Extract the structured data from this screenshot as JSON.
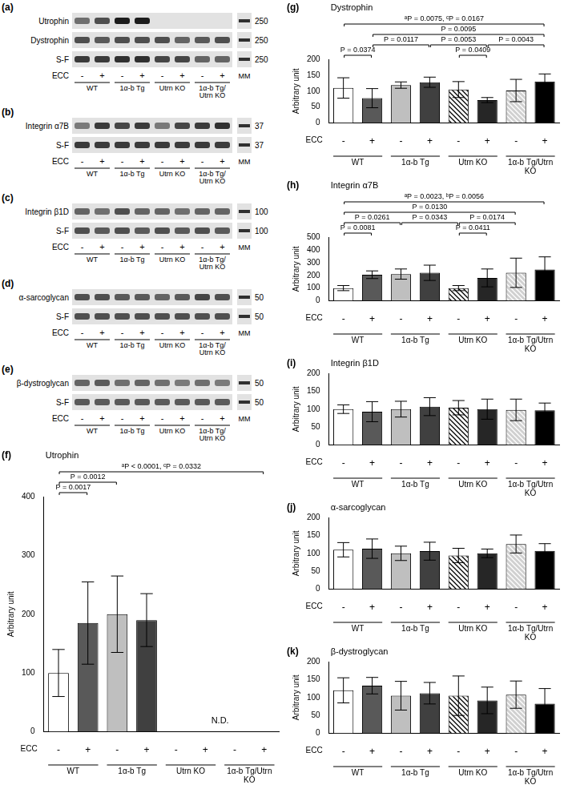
{
  "blots": [
    {
      "letter": "(a)",
      "lane_label": "ECC",
      "lanes": [
        "-",
        "+",
        "-",
        "+",
        "-",
        "+",
        "-",
        "+"
      ],
      "groups": [
        "WT",
        "1α-b Tg",
        "Utrn KO",
        "1α-b Tg/Utrn KO"
      ],
      "marker_label": "MM",
      "rows": [
        {
          "label": "Utrophin",
          "marker": 250,
          "bands": [
            0.55,
            0.7,
            0.95,
            0.95,
            0,
            0,
            0,
            0
          ]
        },
        {
          "label": "Dystrophin",
          "marker": 250,
          "bands": [
            0.7,
            0.65,
            0.7,
            0.7,
            0.7,
            0.6,
            0.65,
            0.7
          ]
        },
        {
          "label": "S-F",
          "marker": 250,
          "bands": [
            0.8,
            0.8,
            0.85,
            0.85,
            0.75,
            0.75,
            0.6,
            0.6
          ]
        }
      ]
    },
    {
      "letter": "(b)",
      "lane_label": "ECC",
      "lanes": [
        "-",
        "+",
        "-",
        "+",
        "-",
        "+",
        "-",
        "+"
      ],
      "groups": [
        "WT",
        "1α-b Tg",
        "Utrn KO",
        "1α-b Tg/Utrn KO"
      ],
      "marker_label": "MM",
      "rows": [
        {
          "label": "Integrin α7B",
          "marker": 37,
          "bands": [
            0.5,
            0.8,
            0.75,
            0.8,
            0.5,
            0.75,
            0.8,
            0.85
          ]
        },
        {
          "label": "S-F",
          "marker": 37,
          "bands": [
            0.8,
            0.8,
            0.8,
            0.8,
            0.8,
            0.8,
            0.8,
            0.8
          ]
        }
      ]
    },
    {
      "letter": "(c)",
      "lane_label": "ECC",
      "lanes": [
        "-",
        "+",
        "-",
        "+",
        "-",
        "+",
        "-",
        "+"
      ],
      "groups": [
        "WT",
        "1α-b Tg",
        "Utrn KO",
        "1α-b Tg/Utrn KO"
      ],
      "marker_label": "MM",
      "rows": [
        {
          "label": "Integrin β1D",
          "marker": 100,
          "bands": [
            0.6,
            0.55,
            0.7,
            0.6,
            0.6,
            0.55,
            0.6,
            0.6
          ]
        },
        {
          "label": "S-F",
          "marker": 100,
          "bands": [
            0.7,
            0.65,
            0.7,
            0.65,
            0.7,
            0.65,
            0.7,
            0.65
          ]
        }
      ]
    },
    {
      "letter": "(d)",
      "lane_label": "ECC",
      "lanes": [
        "-",
        "+",
        "-",
        "+",
        "-",
        "+",
        "-",
        "+"
      ],
      "groups": [
        "WT",
        "1α-b Tg",
        "Utrn KO",
        "1α-b Tg/Utrn KO"
      ],
      "marker_label": "MM",
      "rows": [
        {
          "label": "α-sarcoglycan",
          "marker": 50,
          "bands": [
            0.7,
            0.7,
            0.65,
            0.65,
            0.6,
            0.65,
            0.75,
            0.7
          ]
        },
        {
          "label": "S-F",
          "marker": 50,
          "bands": [
            0.7,
            0.7,
            0.7,
            0.7,
            0.7,
            0.7,
            0.7,
            0.7
          ]
        }
      ]
    },
    {
      "letter": "(e)",
      "lane_label": "ECC",
      "lanes": [
        "-",
        "+",
        "-",
        "+",
        "-",
        "+",
        "-",
        "+"
      ],
      "groups": [
        "WT",
        "1α-b Tg",
        "Utrn KO",
        "1α-b Tg/Utrn KO"
      ],
      "marker_label": "MM",
      "rows": [
        {
          "label": "β-dystroglycan",
          "marker": 50,
          "bands": [
            0.6,
            0.65,
            0.55,
            0.6,
            0.55,
            0.5,
            0.55,
            0.5
          ]
        },
        {
          "label": "S-F",
          "marker": 50,
          "bands": [
            0.65,
            0.65,
            0.65,
            0.65,
            0.65,
            0.65,
            0.65,
            0.65
          ]
        }
      ]
    }
  ],
  "chart_data": [
    {
      "type": "bar",
      "panel": "(f)",
      "title": "Utrophin",
      "y_label": "Arbitrary unit",
      "category_label": "ECC",
      "categories": [
        "-",
        "+",
        "-",
        "+",
        "-",
        "+",
        "-",
        "+"
      ],
      "groups": [
        "WT",
        "1α-b Tg",
        "Utrn KO",
        "1α-b Tg/Utrn KO"
      ],
      "values": [
        100,
        185,
        200,
        190,
        0,
        0,
        0,
        0
      ],
      "errors": [
        40,
        70,
        65,
        45,
        0,
        0,
        0,
        0
      ],
      "colors": [
        "#ffffff",
        "#595959",
        "#bfbfbf",
        "#404040",
        "#ffffff",
        "#262626",
        "#d0d0d0",
        "#000000"
      ],
      "ylim": [
        0,
        400
      ],
      "yticks": [
        0,
        100,
        200,
        300,
        400
      ],
      "grid": false,
      "comparisons": [
        {
          "bars": [
            0,
            1
          ],
          "label": "P = 0.0017"
        },
        {
          "bars": [
            0,
            2
          ],
          "label": "P = 0.0012"
        },
        {
          "bars": [
            0,
            7
          ],
          "label": "ᵃP < 0.0001, ᶜP = 0.0332"
        }
      ],
      "annotations": [
        {
          "bars": [
            4,
            7
          ],
          "text": "N.D."
        }
      ]
    },
    {
      "type": "bar",
      "panel": "(g)",
      "title": "Dystrophin",
      "y_label": "Arbitrary unit",
      "category_label": "ECC",
      "categories": [
        "-",
        "+",
        "-",
        "+",
        "-",
        "+",
        "-",
        "+"
      ],
      "groups": [
        "WT",
        "1α-b Tg",
        "Utrn KO",
        "1α-b Tg/Utrn KO"
      ],
      "values": [
        110,
        78,
        119,
        128,
        105,
        72,
        102,
        130
      ],
      "errors": [
        32,
        30,
        10,
        16,
        25,
        8,
        35,
        24
      ],
      "colors": [
        "#ffffff",
        "#595959",
        "#bfbfbf",
        "#404040",
        "#ffffff",
        "#262626",
        "#d0d0d0",
        "#000000"
      ],
      "ylim": [
        0,
        200
      ],
      "yticks": [
        0,
        50,
        100,
        150,
        200
      ],
      "grid": false,
      "comparisons": [
        {
          "bars": [
            0,
            1
          ],
          "label": "P = 0.0374"
        },
        {
          "bars": [
            4,
            5
          ],
          "label": "P = 0.0409"
        },
        {
          "bars": [
            1,
            3
          ],
          "label": "P = 0.0117"
        },
        {
          "bars": [
            3,
            5
          ],
          "label": "P = 0.0053"
        },
        {
          "bars": [
            5,
            7
          ],
          "label": "P = 0.0043"
        },
        {
          "bars": [
            1,
            7
          ],
          "label": "P = 0.0095"
        },
        {
          "bars": [
            0,
            7
          ],
          "label": "ᵃP = 0.0075, ᶜP = 0.0167"
        }
      ],
      "annotations": []
    },
    {
      "type": "bar",
      "panel": "(h)",
      "title": "Integrin α7B",
      "y_label": "Arbitrary unit",
      "category_label": "ECC",
      "categories": [
        "-",
        "+",
        "-",
        "+",
        "-",
        "+",
        "-",
        "+"
      ],
      "groups": [
        "WT",
        "1α-b Tg",
        "Utrn KO",
        "1α-b Tg/Utrn KO"
      ],
      "values": [
        100,
        205,
        210,
        220,
        100,
        180,
        220,
        245
      ],
      "errors": [
        20,
        30,
        40,
        60,
        20,
        70,
        115,
        100
      ],
      "colors": [
        "#ffffff",
        "#595959",
        "#bfbfbf",
        "#404040",
        "#ffffff",
        "#262626",
        "#d0d0d0",
        "#000000"
      ],
      "ylim": [
        0,
        500
      ],
      "yticks": [
        0,
        100,
        200,
        300,
        400,
        500
      ],
      "grid": false,
      "comparisons": [
        {
          "bars": [
            0,
            1
          ],
          "label": "P = 0.0081"
        },
        {
          "bars": [
            4,
            5
          ],
          "label": "P = 0.0411"
        },
        {
          "bars": [
            0,
            2
          ],
          "label": "P = 0.0261"
        },
        {
          "bars": [
            2,
            4
          ],
          "label": "P = 0.0343"
        },
        {
          "bars": [
            4,
            6
          ],
          "label": "P = 0.0174"
        },
        {
          "bars": [
            0,
            6
          ],
          "label": "P = 0.0130"
        },
        {
          "bars": [
            0,
            7
          ],
          "label": "ᵃP = 0.0023, ᵇP = 0.0056"
        }
      ],
      "annotations": []
    },
    {
      "type": "bar",
      "panel": "(i)",
      "title": "Integrin β1D",
      "y_label": "Arbitrary unit",
      "category_label": "ECC",
      "categories": [
        "-",
        "+",
        "-",
        "+",
        "-",
        "+",
        "-",
        "+"
      ],
      "groups": [
        "WT",
        "1α-b Tg",
        "Utrn KO",
        "1α-b Tg/Utrn KO"
      ],
      "values": [
        100,
        93,
        100,
        107,
        104,
        100,
        98,
        97
      ],
      "errors": [
        12,
        28,
        22,
        25,
        20,
        28,
        30,
        20
      ],
      "colors": [
        "#ffffff",
        "#595959",
        "#bfbfbf",
        "#404040",
        "#ffffff",
        "#262626",
        "#d0d0d0",
        "#000000"
      ],
      "ylim": [
        0,
        200
      ],
      "yticks": [
        0,
        50,
        100,
        150,
        200
      ],
      "grid": false,
      "comparisons": [],
      "annotations": []
    },
    {
      "type": "bar",
      "panel": "(j)",
      "title": "α-sarcoglycan",
      "y_label": "Arbitrary unit",
      "category_label": "ECC",
      "categories": [
        "-",
        "+",
        "-",
        "+",
        "-",
        "+",
        "-",
        "+"
      ],
      "groups": [
        "WT",
        "1α-b Tg",
        "Utrn KO",
        "1α-b Tg/Utrn KO"
      ],
      "values": [
        110,
        113,
        100,
        106,
        94,
        100,
        126,
        107
      ],
      "errors": [
        20,
        27,
        20,
        25,
        20,
        12,
        25,
        20
      ],
      "colors": [
        "#ffffff",
        "#595959",
        "#bfbfbf",
        "#404040",
        "#ffffff",
        "#262626",
        "#d0d0d0",
        "#000000"
      ],
      "ylim": [
        0,
        200
      ],
      "yticks": [
        0,
        50,
        100,
        150,
        200
      ],
      "grid": false,
      "comparisons": [],
      "annotations": []
    },
    {
      "type": "bar",
      "panel": "(k)",
      "title": "β-dystroglycan",
      "y_label": "Arbitrary unit",
      "category_label": "ECC",
      "categories": [
        "-",
        "+",
        "-",
        "+",
        "-",
        "+",
        "-",
        "+"
      ],
      "groups": [
        "WT",
        "1α-b Tg",
        "Utrn KO",
        "1α-b Tg/Utrn KO"
      ],
      "values": [
        120,
        133,
        105,
        112,
        105,
        92,
        108,
        83
      ],
      "errors": [
        35,
        23,
        40,
        30,
        55,
        37,
        38,
        42
      ],
      "colors": [
        "#ffffff",
        "#595959",
        "#bfbfbf",
        "#404040",
        "#ffffff",
        "#262626",
        "#d0d0d0",
        "#000000"
      ],
      "ylim": [
        0,
        200
      ],
      "yticks": [
        0,
        50,
        100,
        150,
        200
      ],
      "grid": false,
      "comparisons": [],
      "annotations": []
    }
  ]
}
